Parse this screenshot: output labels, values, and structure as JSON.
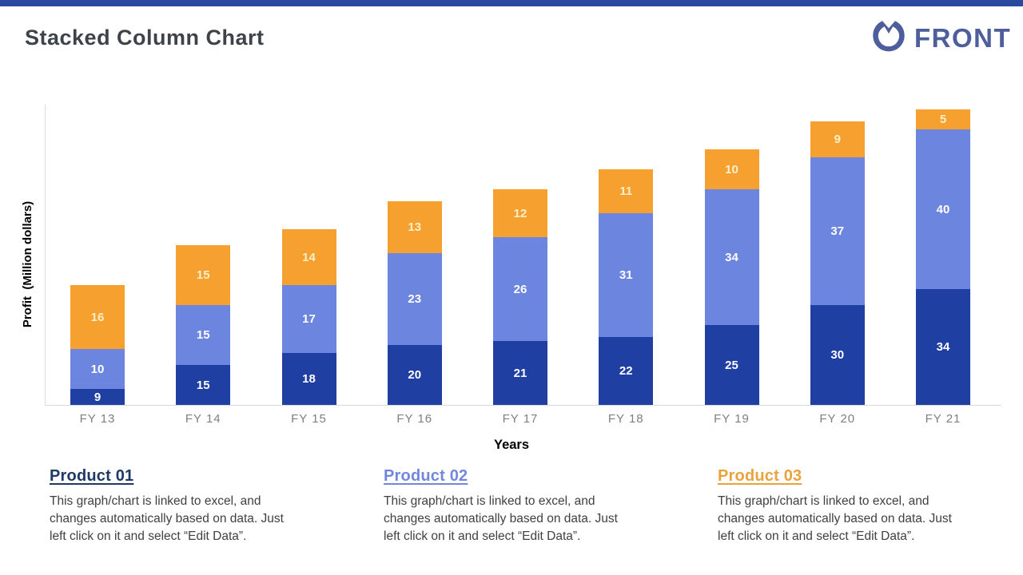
{
  "slide": {
    "accent_strip_color": "#2a4aa1"
  },
  "header": {
    "title": "Stacked Column Chart",
    "logo": {
      "text": "FRONT",
      "color": "#4e5d9b",
      "icon": "front-notched-circle-icon"
    }
  },
  "chart_data": {
    "type": "bar",
    "stacked": true,
    "categories": [
      "FY 13",
      "FY 14",
      "FY 15",
      "FY 16",
      "FY 17",
      "FY 18",
      "FY 19",
      "FY 20",
      "FY 21"
    ],
    "series": [
      {
        "name": "Product 01",
        "color": "#1f3fa3",
        "label_color": "#ffffff",
        "values": [
          9,
          15,
          18,
          20,
          21,
          22,
          25,
          30,
          34
        ]
      },
      {
        "name": "Product 02",
        "color": "#6c86df",
        "label_color": "#ffffff",
        "values": [
          10,
          15,
          17,
          23,
          26,
          31,
          34,
          37,
          40
        ]
      },
      {
        "name": "Product 03",
        "color": "#f5a02f",
        "label_color": "#fcefcd",
        "values": [
          16,
          15,
          14,
          13,
          12,
          11,
          10,
          9,
          5
        ]
      }
    ],
    "xlabel": "Years",
    "ylabel": "Profit  (Million dollars)",
    "ylim": [
      5,
      80
    ],
    "grid": false,
    "legend": "none",
    "value_labels": "inside",
    "axis_color": "#d9d9d9",
    "tick_color": "#7f7f7f"
  },
  "products": [
    {
      "title": "Product 01",
      "color": "#1f3864",
      "lines": [
        "This graph/chart is linked to excel, and",
        "changes automatically based on data. Just",
        "left click on it and select “Edit Data”."
      ]
    },
    {
      "title": "Product 02",
      "color": "#7386de",
      "lines": [
        "This graph/chart is linked to excel, and",
        "changes automatically based on data. Just",
        "left click on it and select “Edit Data”."
      ]
    },
    {
      "title": "Product 03",
      "color": "#e9a23c",
      "lines": [
        "This graph/chart is linked to excel, and",
        "changes automatically based on data. Just",
        "left click on it and select “Edit Data”."
      ]
    }
  ]
}
